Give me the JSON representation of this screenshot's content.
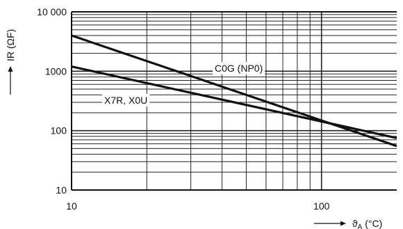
{
  "chart_data": {
    "type": "line",
    "x_scale": "log",
    "y_scale": "log",
    "xlim": [
      10,
      200
    ],
    "ylim": [
      10,
      10000
    ],
    "grid": true,
    "xlabel": "ϑA (°C)",
    "xlabel_base": "ϑ",
    "xlabel_sub": "A",
    "xlabel_unit": " (°C)",
    "ylabel": "IR (ΩF)",
    "x_ticks": [
      {
        "value": 10,
        "label": "10"
      },
      {
        "value": 100,
        "label": "100"
      }
    ],
    "y_ticks": [
      {
        "value": 10,
        "label": "10"
      },
      {
        "value": 100,
        "label": "100"
      },
      {
        "value": 1000,
        "label": "1000"
      },
      {
        "value": 10000,
        "label": "10 000"
      }
    ],
    "series": [
      {
        "name": "C0G (NP0)",
        "x": [
          10,
          200
        ],
        "y": [
          4000,
          55
        ]
      },
      {
        "name": "X7R, X0U",
        "x": [
          10,
          200
        ],
        "y": [
          1200,
          75
        ]
      }
    ]
  }
}
